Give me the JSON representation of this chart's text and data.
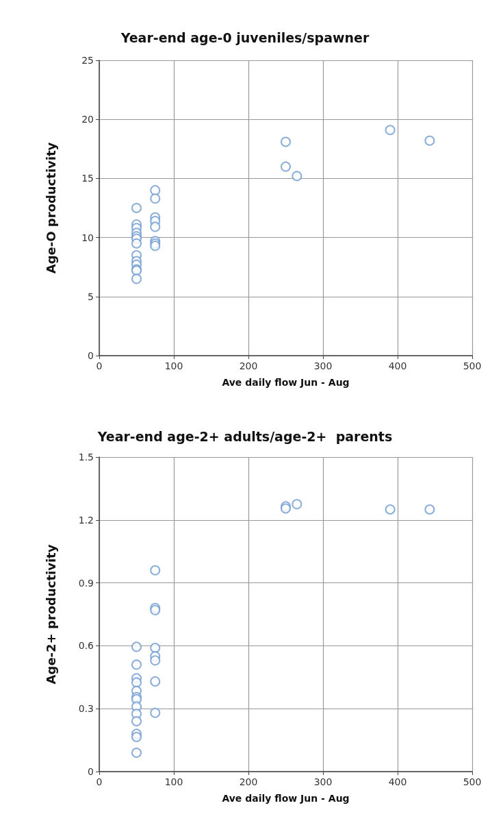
{
  "chart_data": [
    {
      "type": "scatter",
      "title": "Year-end age-0 juveniles/spawner",
      "xlabel": "Ave daily flow Jun - Aug",
      "ylabel": "Age-O productivity",
      "series": [
        {
          "color": "#6f9bd1",
          "x": [
            50,
            50,
            50,
            50,
            50,
            50,
            50,
            50,
            50,
            50,
            50,
            50,
            50,
            75,
            75,
            75,
            75,
            75,
            75,
            75,
            75,
            250,
            250,
            265,
            390,
            443
          ],
          "values": [
            12.5,
            11.1,
            10.8,
            10.4,
            10.1,
            9.9,
            9.5,
            8.5,
            8.0,
            7.7,
            7.3,
            7.2,
            6.5,
            14.0,
            13.3,
            11.7,
            11.4,
            10.9,
            9.7,
            9.5,
            9.3,
            18.1,
            16.0,
            15.2,
            19.1,
            18.2
          ]
        }
      ],
      "marker": "circle",
      "xlim": [
        0,
        500
      ],
      "xticks": [
        0,
        100,
        200,
        300,
        400,
        500
      ],
      "ylim": [
        0,
        25
      ],
      "yticks": [
        0,
        5,
        10,
        15,
        20,
        25
      ],
      "grid": true
    },
    {
      "type": "scatter",
      "title": "Year-end age-2+ adults/age-2+  parents",
      "xlabel": "Ave daily flow Jun - Aug",
      "ylabel": "Age-2+ productivity",
      "series": [
        {
          "color": "#6f9bd1",
          "x": [
            50,
            50,
            50,
            50,
            50,
            50,
            50,
            50,
            50,
            50,
            50,
            50,
            50,
            75,
            75,
            75,
            75,
            75,
            75,
            75,
            75,
            250,
            250,
            265,
            390,
            443
          ],
          "values": [
            0.595,
            0.51,
            0.445,
            0.425,
            0.385,
            0.355,
            0.345,
            0.31,
            0.275,
            0.24,
            0.18,
            0.165,
            0.09,
            0.96,
            0.78,
            0.77,
            0.59,
            0.55,
            0.53,
            0.43,
            0.28,
            1.265,
            1.255,
            1.275,
            1.25,
            1.25
          ]
        }
      ],
      "marker": "circle",
      "xlim": [
        0,
        500
      ],
      "xticks": [
        0,
        100,
        200,
        300,
        400,
        500
      ],
      "ylim": [
        0,
        1.5
      ],
      "yticks": [
        {
          "value": 0,
          "label": "0"
        },
        0.3,
        0.6,
        0.9,
        1.2,
        1.5
      ],
      "grid": true
    }
  ]
}
